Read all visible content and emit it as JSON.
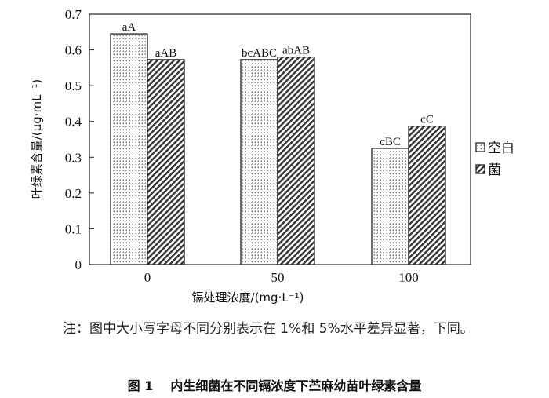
{
  "chart_data": {
    "type": "bar",
    "categories": [
      "0",
      "50",
      "100"
    ],
    "series": [
      {
        "name": "空白",
        "pattern": "dots",
        "values": [
          0.645,
          0.573,
          0.325
        ],
        "labels": [
          "aA",
          "bcABC",
          "cBC"
        ]
      },
      {
        "name": "菌",
        "pattern": "hatch",
        "values": [
          0.573,
          0.58,
          0.387
        ],
        "labels": [
          "aAB",
          "abAB",
          "cC"
        ]
      }
    ],
    "ylabel": "叶绿素含量/(μg·mL⁻¹)",
    "xlabel": "镉处理浓度/(mg·L⁻¹)",
    "ylim": [
      0,
      0.7
    ],
    "yticks": [
      "0",
      "0.1",
      "0.2",
      "0.3",
      "0.4",
      "0.5",
      "0.6",
      "0.7"
    ],
    "legend_position": "right",
    "grid": false
  },
  "note": "注：图中大小写字母不同分别表示在 1%和 5%水平差异显著，下同。",
  "caption": {
    "number": "图 1",
    "text": "内生细菌在不同镉浓度下苎麻幼苗叶绿素含量"
  }
}
